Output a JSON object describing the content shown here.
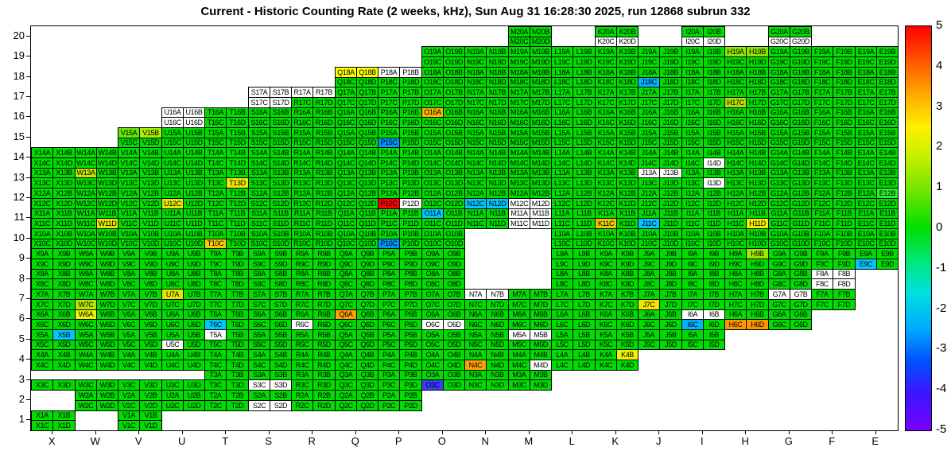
{
  "title": "Current - Historic Counting Rate (2 weeks, kHz), Sun Aug 31 16:28:30 2025, run 12868 subrun 332",
  "chart_data": {
    "type": "heatmap",
    "title": "Current - Historic Counting Rate (2 weeks, kHz), Sun Aug 31 16:28:30 2025, run 12868 subrun 332",
    "xlabel": "",
    "ylabel": "",
    "grid": "off",
    "legend_position": "right-colorbar",
    "x_categories": [
      "X",
      "W",
      "V",
      "U",
      "T",
      "S",
      "R",
      "Q",
      "P",
      "O",
      "N",
      "M",
      "L",
      "K",
      "J",
      "I",
      "H",
      "G",
      "F",
      "E"
    ],
    "y_categories": [
      "1",
      "2",
      "3",
      "4",
      "5",
      "6",
      "7",
      "8",
      "9",
      "10",
      "11",
      "12",
      "13",
      "14",
      "15",
      "16",
      "17",
      "18",
      "19",
      "20"
    ],
    "sub_cells": [
      "A",
      "B",
      "C",
      "D"
    ],
    "label_format": "{col}{row}{sub}",
    "default_value_color": "#00DD00",
    "rows": [
      {
        "row": 20,
        "cols": [
          "M",
          "K",
          "I",
          "G"
        ]
      },
      {
        "row": 19,
        "cols": [
          "O",
          "N",
          "M",
          "L",
          "K",
          "J",
          "I",
          "H",
          "G",
          "F",
          "E"
        ]
      },
      {
        "row": 18,
        "cols": [
          "Q",
          "P",
          "O",
          "N",
          "M",
          "L",
          "K",
          "J",
          "I",
          "H",
          "G",
          "F",
          "E"
        ]
      },
      {
        "row": 17,
        "cols": [
          "S",
          "R",
          "Q",
          "P",
          "O",
          "N",
          "M",
          "L",
          "K",
          "J",
          "I",
          "H",
          "G",
          "F",
          "E"
        ]
      },
      {
        "row": 16,
        "cols": [
          "U",
          "T",
          "S",
          "R",
          "Q",
          "P",
          "O",
          "N",
          "M",
          "L",
          "K",
          "J",
          "I",
          "H",
          "G",
          "F",
          "E"
        ]
      },
      {
        "row": 15,
        "cols": [
          "V",
          "U",
          "T",
          "S",
          "R",
          "Q",
          "P",
          "O",
          "N",
          "M",
          "L",
          "K",
          "J",
          "I",
          "H",
          "G",
          "F",
          "E"
        ]
      },
      {
        "row": 14,
        "cols": [
          "X",
          "W",
          "V",
          "U",
          "T",
          "S",
          "R",
          "Q",
          "P",
          "O",
          "N",
          "M",
          "L",
          "K",
          "J",
          "I",
          "H",
          "G",
          "F",
          "E"
        ]
      },
      {
        "row": 13,
        "cols": [
          "X",
          "W",
          "V",
          "U",
          "T",
          "S",
          "R",
          "Q",
          "P",
          "O",
          "N",
          "M",
          "L",
          "K",
          "J",
          "I",
          "H",
          "G",
          "F",
          "E"
        ]
      },
      {
        "row": 12,
        "cols": [
          "X",
          "W",
          "V",
          "U",
          "T",
          "S",
          "R",
          "Q",
          "P",
          "O",
          "N",
          "M",
          "L",
          "K",
          "J",
          "I",
          "H",
          "G",
          "F",
          "E"
        ]
      },
      {
        "row": 11,
        "cols": [
          "X",
          "W",
          "V",
          "U",
          "T",
          "S",
          "R",
          "Q",
          "P",
          "O",
          "N",
          "M",
          "L",
          "K",
          "J",
          "I",
          "H",
          "G",
          "F",
          "E"
        ]
      },
      {
        "row": 10,
        "cols": [
          "X",
          "W",
          "V",
          "U",
          "T",
          "S",
          "R",
          "Q",
          "P",
          "O",
          "L",
          "K",
          "J",
          "I",
          "H",
          "G",
          "F",
          "E"
        ]
      },
      {
        "row": 9,
        "cols": [
          "X",
          "W",
          "V",
          "U",
          "T",
          "S",
          "R",
          "Q",
          "P",
          "O",
          "L",
          "K",
          "J",
          "I",
          "H",
          "G",
          "F",
          "E"
        ]
      },
      {
        "row": 8,
        "cols": [
          "X",
          "W",
          "V",
          "U",
          "T",
          "S",
          "R",
          "Q",
          "P",
          "O",
          "L",
          "K",
          "J",
          "I",
          "H",
          "G",
          "F"
        ]
      },
      {
        "row": 7,
        "cols": [
          "X",
          "W",
          "V",
          "U",
          "T",
          "S",
          "R",
          "Q",
          "P",
          "O",
          "N",
          "M",
          "L",
          "K",
          "J",
          "I",
          "H",
          "G",
          "F"
        ]
      },
      {
        "row": 6,
        "cols": [
          "X",
          "W",
          "V",
          "U",
          "T",
          "S",
          "R",
          "Q",
          "P",
          "O",
          "N",
          "M",
          "L",
          "K",
          "J",
          "I",
          "H",
          "G"
        ]
      },
      {
        "row": 5,
        "cols": [
          "X",
          "W",
          "V",
          "U",
          "T",
          "S",
          "R",
          "Q",
          "P",
          "O",
          "N",
          "M",
          "L",
          "K",
          "J",
          "I"
        ]
      },
      {
        "row": 4,
        "cols": [
          "X",
          "W",
          "V",
          "U",
          "T",
          "S",
          "R",
          "Q",
          "P",
          "O",
          "N",
          "M",
          "L",
          "K"
        ]
      },
      {
        "row": 3,
        "cols": [
          "X",
          "W",
          "V",
          "U",
          "T",
          "S",
          "R",
          "Q",
          "P",
          "O",
          "N",
          "M"
        ]
      },
      {
        "row": 2,
        "cols": [
          "W",
          "V",
          "U",
          "T",
          "S",
          "R",
          "Q",
          "P"
        ]
      },
      {
        "row": 1,
        "cols": [
          "X",
          "V"
        ]
      }
    ],
    "cell_color_overrides": {
      "K20C": "white",
      "K20D": "white",
      "I20C": "white",
      "I20D": "white",
      "G20C": "white",
      "G20D": "white",
      "H19A": "#8CE600",
      "H19B": "#8CE600",
      "Q18A": "#FFFF00",
      "Q18B": "#FFFF00",
      "P18A": "white",
      "P18B": "white",
      "J18C": "#00B4FF",
      "S17A": "white",
      "S17B": "white",
      "S17C": "white",
      "S17D": "white",
      "R17A": "white",
      "R17B": "white",
      "H17C": "#B4DC00",
      "U16A": "white",
      "U16B": "white",
      "U16C": "white",
      "U16D": "white",
      "O16A": "#FFB400",
      "V15A": "#66E600",
      "V15B": "#AAEE00",
      "P15C": "#0096FF",
      "I14D": "white",
      "W13A": "#C8E600",
      "T13D": "#F0E600",
      "J13A": "white",
      "J13B": "white",
      "I13D": "white",
      "U12C": "#E6E600",
      "P12C": "#FF0000",
      "P12D": "white",
      "N12C": "#00C8FF",
      "N12D": "#00C8FF",
      "M12C": "white",
      "M12D": "white",
      "E12B": "#2CF02C",
      "W11D": "#E6E600",
      "O11A": "#00C8FF",
      "M11A": "white",
      "M11B": "white",
      "M11C": "white",
      "M11D": "white",
      "K11C": "#F0C800",
      "J11C": "#00C8FF",
      "H11D": "#F0F000",
      "T10C": "#FFC800",
      "P10C": "#0096FF",
      "H9B": "#A0E600",
      "E9C": "#00C8FF",
      "F8A": "white",
      "F8B": "white",
      "F8C": "white",
      "F8D": "white",
      "G7A": "white",
      "G7B": "white",
      "N7A": "white",
      "N7B": "white",
      "W7C": "#B4E600",
      "U7A": "#E6E600",
      "J7C": "#F0E600",
      "W6A": "#F0F000",
      "T6C": "#00C8FF",
      "R6C": "white",
      "Q6A": "#FFA000",
      "O6C": "white",
      "O6D": "white",
      "I6A": "white",
      "I6B": "white",
      "I6C": "#00B4FF",
      "H6C": "#FF9600",
      "H6D": "#FF9600",
      "X5B": "#00C8FF",
      "U5C": "white",
      "T5A": "white",
      "M5A": "white",
      "M5B": "white",
      "K4B": "#F0F000",
      "N4C": "#FFA000",
      "M4D": "white",
      "X3A": "absent",
      "X3B": "absent",
      "W3A": "absent",
      "W3B": "absent",
      "V3A": "absent",
      "V3B": "absent",
      "U3A": "absent",
      "U3B": "absent",
      "S3C": "white",
      "S3D": "white",
      "O3C": "#3C3CFF",
      "S2C": "white",
      "S2D": "white"
    },
    "colorbar": {
      "min": -5,
      "max": 5,
      "ticks": [
        "5",
        "4",
        "3",
        "2",
        "1",
        "0",
        "-1",
        "-2",
        "-3",
        "-4",
        "-5"
      ],
      "gradient_stops": [
        "#FF0000 0%",
        "#FF3C00 6%",
        "#FF7800 12%",
        "#FFB400 18%",
        "#FFF000 25%",
        "#C8F000 32%",
        "#78E600 40%",
        "#00DD00 50%",
        "#00E678 58%",
        "#00E1E1 66%",
        "#00A8FF 75%",
        "#0050FF 83%",
        "#3C14FF 91%",
        "#7800FF 100%"
      ]
    }
  }
}
